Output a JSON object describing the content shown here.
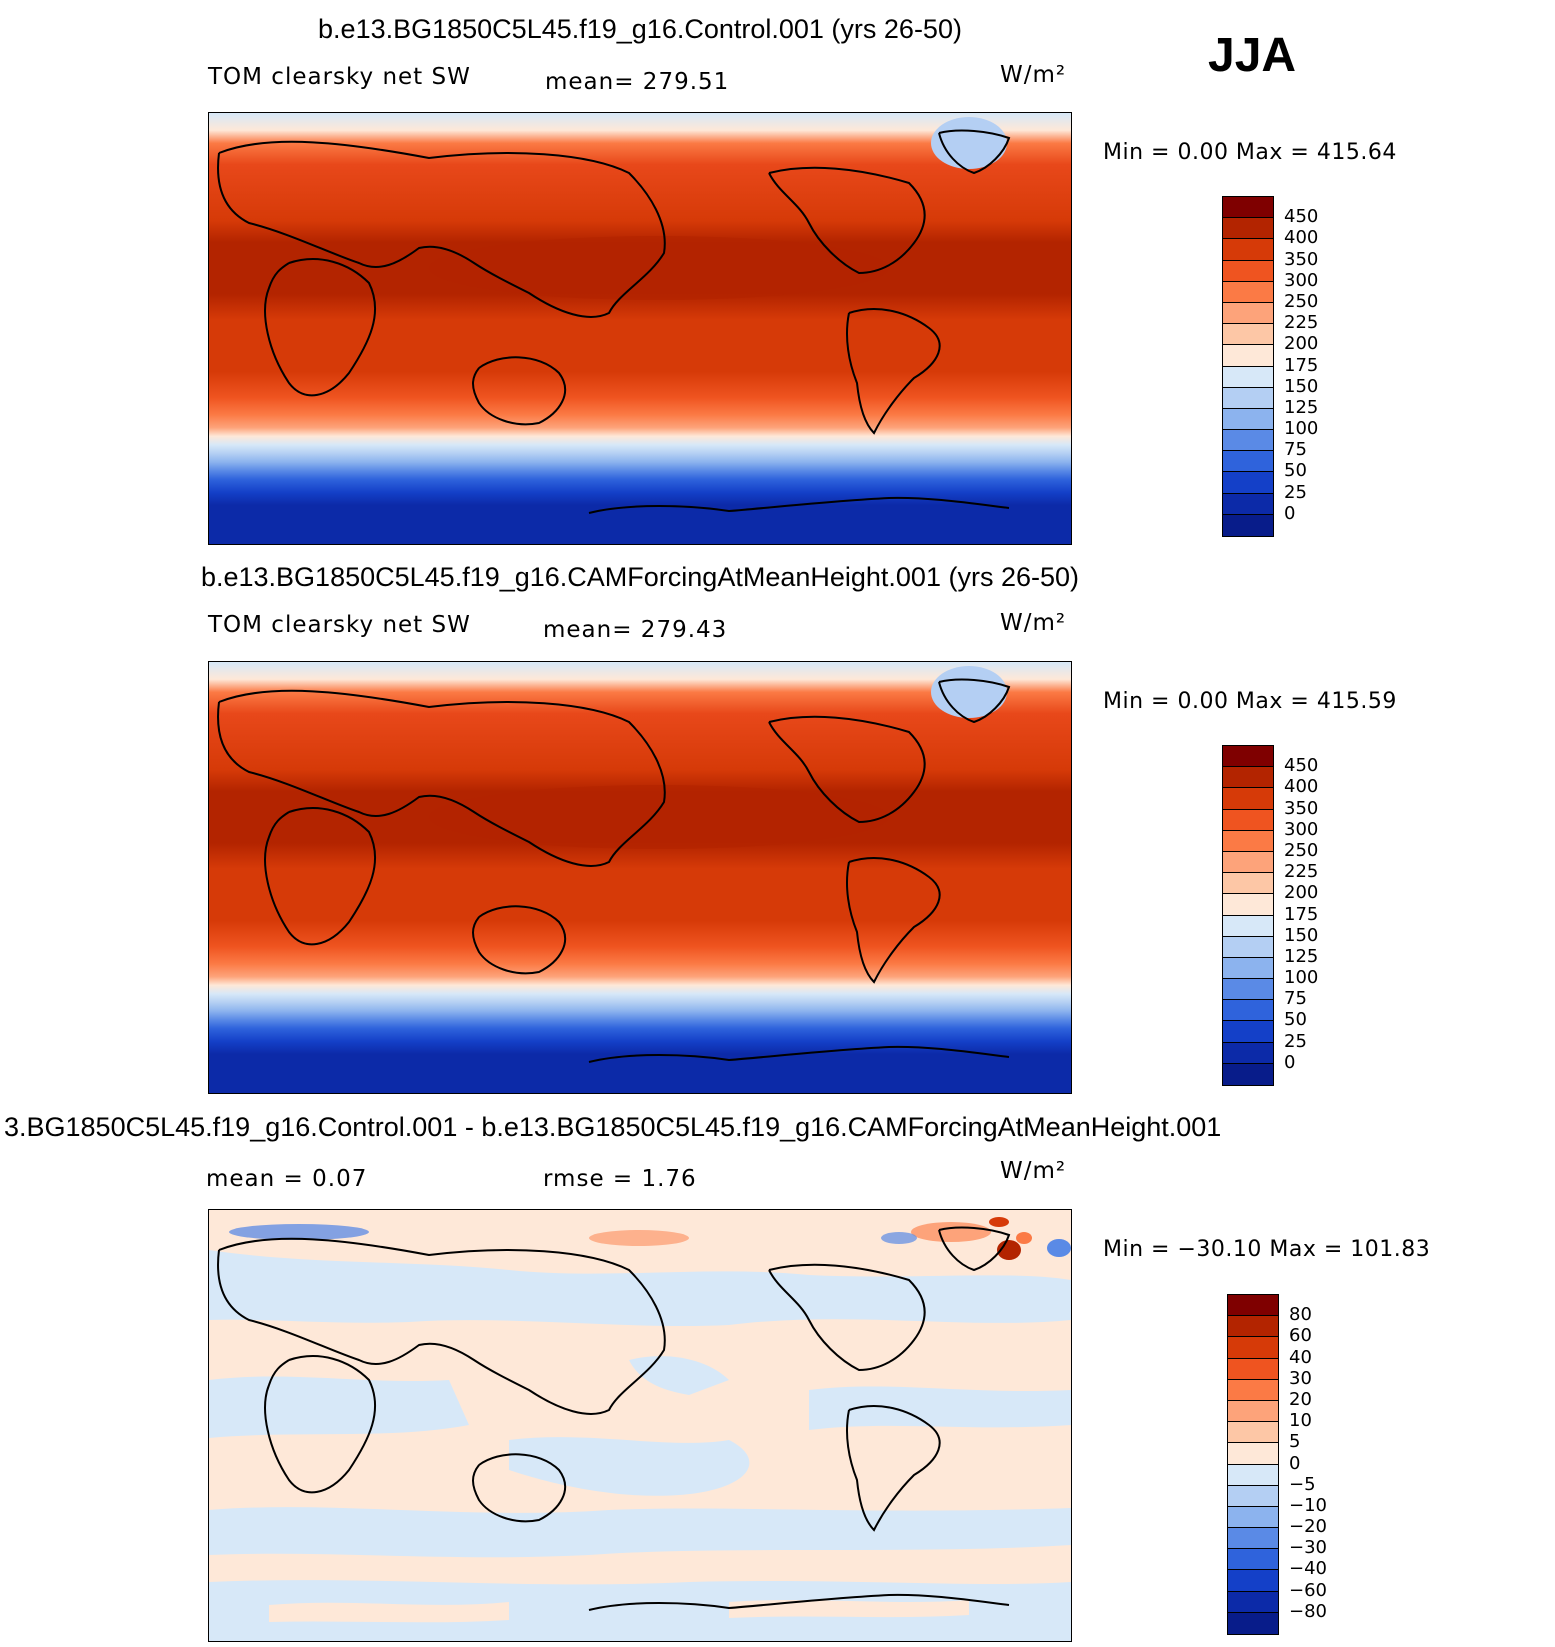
{
  "season": "JJA",
  "panels": [
    {
      "title": "b.e13.BG1850C5L45.f19_g16.Control.001 (yrs 26-50)",
      "left_label": "TOM clearsky net SW",
      "mean_label": "mean= 279.51",
      "units": "W/m²",
      "minmax": "Min =    0.00 Max = 415.64"
    },
    {
      "title": "b.e13.BG1850C5L45.f19_g16.CAMForcingAtMeanHeight.001 (yrs 26-50)",
      "left_label": "TOM clearsky net SW",
      "mean_label": "mean= 279.43",
      "units": "W/m²",
      "minmax": "Min =    0.00 Max = 415.59"
    },
    {
      "title": "3.BG1850C5L45.f19_g16.Control.001 - b.e13.BG1850C5L45.f19_g16.CAMForcingAtMeanHeight.001",
      "mean_label": "mean =    0.07",
      "rmse_label": "rmse =    1.76",
      "units": "W/m²",
      "minmax": "Min = −30.10 Max = 101.83"
    }
  ],
  "colorbar_main": {
    "labels": [
      "450",
      "400",
      "350",
      "300",
      "250",
      "225",
      "200",
      "175",
      "150",
      "125",
      "100",
      "75",
      "50",
      "25",
      "0"
    ],
    "colors": [
      "#7f0000",
      "#b32400",
      "#d63a08",
      "#ef5420",
      "#fb7a45",
      "#fda37a",
      "#fdc7a6",
      "#fee8d8",
      "#d7e8f8",
      "#b4cff3",
      "#8cb3ee",
      "#5a8ae6",
      "#2f63dc",
      "#1440c8",
      "#0c2aa8",
      "#081c8a"
    ]
  },
  "colorbar_diff": {
    "labels": [
      "80",
      "60",
      "40",
      "30",
      "20",
      "10",
      "5",
      "0",
      "−5",
      "−10",
      "−20",
      "−30",
      "−40",
      "−60",
      "−80"
    ],
    "colors": [
      "#7f0000",
      "#b32400",
      "#d63a08",
      "#ef5420",
      "#fb7a45",
      "#fda37a",
      "#fdc7a6",
      "#fee8d8",
      "#d7e8f8",
      "#b4cff3",
      "#8cb3ee",
      "#5a8ae6",
      "#2f63dc",
      "#1440c8",
      "#0c2aa8",
      "#081c8a"
    ]
  }
}
